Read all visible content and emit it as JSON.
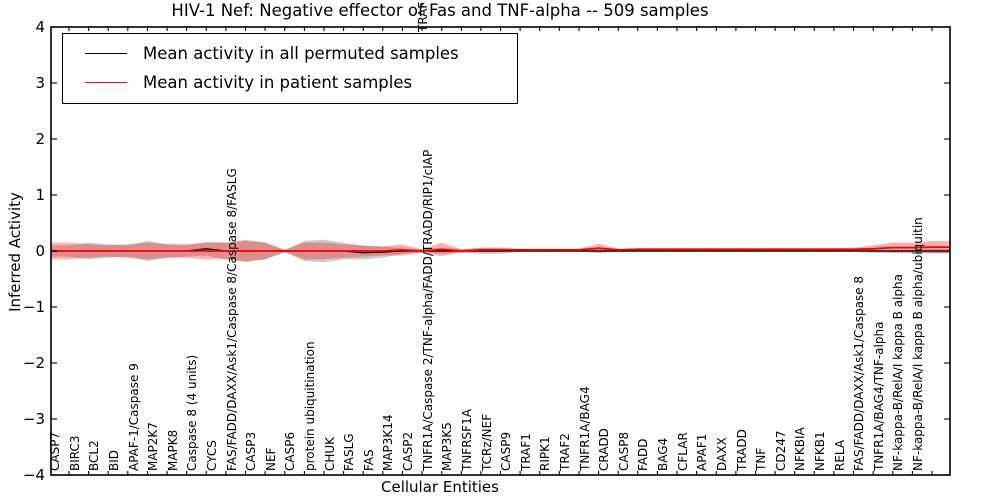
{
  "figure": {
    "clipped_label_fragment": "TRAF",
    "background": "#ffffff",
    "axis_color": "#000000"
  },
  "chart_data": {
    "type": "line",
    "title": "HIV-1 Nef: Negative effector of Fas and TNF-alpha -- 509 samples",
    "xlabel": "Cellular Entities",
    "ylabel": "Inferred Activity",
    "ylim": [
      -4,
      4
    ],
    "yticks": [
      4,
      3,
      2,
      1,
      0,
      -1,
      -2,
      -3,
      -4
    ],
    "grid": false,
    "legend_position": "upper left",
    "zero_line": {
      "y": 0,
      "style": "dotted",
      "color": "#000000"
    },
    "categories": [
      "CASP7",
      "BIRC3",
      "BCL2",
      "BID",
      "APAF-1/Caspase 9",
      "MAP2K7",
      "MAPK8",
      "Caspase 8 (4 units)",
      "CYCS",
      "FAS/FADD/DAXX/Ask1/Caspase 8/Caspase 8/FASLG",
      "CASP3",
      "NEF",
      "CASP6",
      "protein ubiquitination",
      "CHUK",
      "FASLG",
      "FAS",
      "MAP3K14",
      "CASP2",
      "TNFR1A/Caspase 2/TNF-alpha/FADD/TRADD/RIP1/cIAP",
      "MAP3K5",
      "TNFRSF1A",
      "TCRz/NEF",
      "CASP9",
      "TRAF1",
      "RIPK1",
      "TRAF2",
      "TNFR1A/BAG4",
      "CRADD",
      "CASP8",
      "FADD",
      "BAG4",
      "CFLAR",
      "APAF1",
      "DAXX",
      "TRADD",
      "TNF",
      "CD247",
      "NFKBIA",
      "NFKB1",
      "RELA",
      "FAS/FADD/DAXX/Ask1/Caspase 8",
      "TNFR1A/BAG4/TNF-alpha",
      "NF-kappa-B/RelA/I kappa B alpha",
      "NF-kappa-B/RelA/I kappa B alpha/ubiquitin"
    ],
    "series": [
      {
        "name": "Mean activity in all permuted samples",
        "color": "#000000",
        "style": "solid",
        "band_color": "rgba(120,120,120,0.38)",
        "values": [
          0,
          0,
          0,
          0,
          0,
          0,
          0,
          0.04,
          0,
          0,
          0,
          0,
          0,
          0,
          0,
          -0.03,
          -0.02,
          0,
          0,
          0,
          0,
          0,
          0,
          0,
          0,
          0,
          0,
          0,
          0,
          0,
          0,
          0,
          0,
          0,
          0,
          0,
          0,
          0,
          0,
          0,
          0,
          0,
          0,
          0,
          0
        ],
        "band": [
          0.1,
          0.15,
          0.12,
          0.1,
          0.18,
          0.12,
          0.1,
          0.12,
          0.15,
          0.2,
          0.15,
          0.02,
          0.18,
          0.2,
          0.15,
          0.12,
          0.1,
          0.05,
          0.03,
          0.05,
          0.03,
          0.05,
          0.05,
          0.02,
          0.02,
          0.02,
          0.02,
          0.03,
          0.02,
          0.02,
          0.02,
          0.02,
          0.02,
          0.02,
          0.02,
          0.02,
          0.02,
          0.02,
          0.02,
          0.02,
          0.02,
          0.03,
          0.03,
          0.03,
          0.04
        ]
      },
      {
        "name": "Mean activity in patient samples",
        "color": "#ff0000",
        "style": "solid",
        "band_color": "rgba(255,0,0,0.30)",
        "values": [
          0,
          0,
          0,
          0,
          0,
          0,
          0,
          0,
          0,
          0,
          0,
          0,
          0,
          0,
          0,
          0,
          0,
          0.02,
          0,
          0.03,
          0,
          0.02,
          0.02,
          0.02,
          0.02,
          0.02,
          0.02,
          0.05,
          0.02,
          0.03,
          0.03,
          0.03,
          0.03,
          0.03,
          0.03,
          0.03,
          0.03,
          0.03,
          0.03,
          0.03,
          0.03,
          0.04,
          0.06,
          0.06,
          0.07
        ],
        "band": [
          0.15,
          0.12,
          0.1,
          0.12,
          0.15,
          0.12,
          0.12,
          0.15,
          0.15,
          0.18,
          0.15,
          0.02,
          0.15,
          0.15,
          0.12,
          0.1,
          0.08,
          0.1,
          0.03,
          0.12,
          0.03,
          0.04,
          0.04,
          0.02,
          0.02,
          0.02,
          0.02,
          0.08,
          0.02,
          0.02,
          0.02,
          0.02,
          0.02,
          0.02,
          0.02,
          0.02,
          0.02,
          0.02,
          0.02,
          0.02,
          0.03,
          0.06,
          0.09,
          0.09,
          0.11
        ]
      }
    ]
  }
}
